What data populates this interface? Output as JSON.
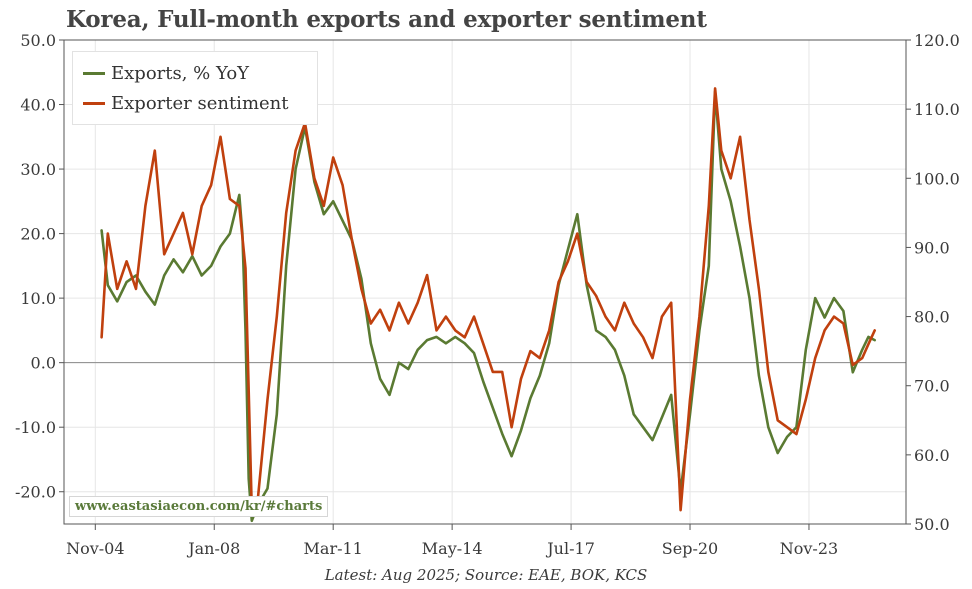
{
  "title": "Korea, Full-month exports and exporter sentiment",
  "source_note": "Latest: Aug 2025; Source: EAE, BOK, KCS",
  "watermark": "www.eastasiaecon.com/kr/#charts",
  "colors": {
    "exports": "#5a7a32",
    "sentiment": "#c0400e",
    "zero_line": "#8a8a8a",
    "grid": "#e6e6e6",
    "axis": "#555555"
  },
  "chart_data": {
    "type": "line",
    "title": "Korea, Full-month exports and exporter sentiment",
    "x_tick_labels": [
      "Nov-04",
      "Jan-08",
      "Mar-11",
      "May-14",
      "Jul-17",
      "Sep-20",
      "Nov-23"
    ],
    "x_tick_dates": [
      "2004-11",
      "2008-01",
      "2011-03",
      "2014-05",
      "2017-07",
      "2020-09",
      "2023-11"
    ],
    "x_range": [
      "2004-01",
      "2026-06"
    ],
    "left_axis": {
      "ylim": [
        -25,
        50
      ],
      "ticks": [
        -20.0,
        -10.0,
        0.0,
        10.0,
        20.0,
        30.0,
        40.0,
        50.0
      ],
      "tick_labels": [
        "-20.0",
        "-10.0",
        "0.0",
        "10.0",
        "20.0",
        "30.0",
        "40.0",
        "50.0"
      ]
    },
    "right_axis": {
      "ylim": [
        50,
        120
      ],
      "ticks": [
        50,
        60,
        70,
        80,
        90,
        100,
        110,
        120
      ],
      "tick_labels": [
        "50.0",
        "60.0",
        "70.0",
        "80.0",
        "90.0",
        "100.0",
        "110.0",
        "120.0"
      ]
    },
    "grid": true,
    "legend_position": "top-left",
    "series": [
      {
        "name": "Exports, % YoY",
        "axis": "left",
        "color": "#5a7a32",
        "points": [
          [
            "2005-01",
            20.5
          ],
          [
            "2005-03",
            12.0
          ],
          [
            "2005-06",
            9.5
          ],
          [
            "2005-09",
            12.5
          ],
          [
            "2005-12",
            13.5
          ],
          [
            "2006-03",
            11.0
          ],
          [
            "2006-06",
            9.0
          ],
          [
            "2006-09",
            13.5
          ],
          [
            "2006-12",
            16.0
          ],
          [
            "2007-03",
            14.0
          ],
          [
            "2007-06",
            16.5
          ],
          [
            "2007-09",
            13.5
          ],
          [
            "2007-12",
            15.0
          ],
          [
            "2008-03",
            18.0
          ],
          [
            "2008-06",
            20.0
          ],
          [
            "2008-09",
            26.0
          ],
          [
            "2008-10",
            20.0
          ],
          [
            "2008-11",
            5.0
          ],
          [
            "2008-12",
            -18.0
          ],
          [
            "2009-01",
            -24.5
          ],
          [
            "2009-03",
            -22.0
          ],
          [
            "2009-06",
            -19.5
          ],
          [
            "2009-09",
            -8.0
          ],
          [
            "2009-12",
            15.0
          ],
          [
            "2010-03",
            30.0
          ],
          [
            "2010-06",
            36.5
          ],
          [
            "2010-09",
            28.0
          ],
          [
            "2010-12",
            23.0
          ],
          [
            "2011-03",
            25.0
          ],
          [
            "2011-06",
            22.0
          ],
          [
            "2011-09",
            19.0
          ],
          [
            "2011-12",
            13.0
          ],
          [
            "2012-03",
            3.0
          ],
          [
            "2012-06",
            -2.5
          ],
          [
            "2012-09",
            -5.0
          ],
          [
            "2012-12",
            0.0
          ],
          [
            "2013-03",
            -1.0
          ],
          [
            "2013-06",
            2.0
          ],
          [
            "2013-09",
            3.5
          ],
          [
            "2013-12",
            4.0
          ],
          [
            "2014-03",
            3.0
          ],
          [
            "2014-06",
            4.0
          ],
          [
            "2014-09",
            3.0
          ],
          [
            "2014-12",
            1.5
          ],
          [
            "2015-03",
            -3.0
          ],
          [
            "2015-06",
            -7.0
          ],
          [
            "2015-09",
            -11.0
          ],
          [
            "2015-12",
            -14.5
          ],
          [
            "2016-03",
            -10.5
          ],
          [
            "2016-06",
            -5.5
          ],
          [
            "2016-09",
            -2.0
          ],
          [
            "2016-12",
            3.0
          ],
          [
            "2017-03",
            12.0
          ],
          [
            "2017-06",
            17.5
          ],
          [
            "2017-09",
            23.0
          ],
          [
            "2017-12",
            12.0
          ],
          [
            "2018-03",
            5.0
          ],
          [
            "2018-06",
            4.0
          ],
          [
            "2018-09",
            2.0
          ],
          [
            "2018-12",
            -2.0
          ],
          [
            "2019-03",
            -8.0
          ],
          [
            "2019-06",
            -10.0
          ],
          [
            "2019-09",
            -12.0
          ],
          [
            "2019-12",
            -8.5
          ],
          [
            "2020-03",
            -5.0
          ],
          [
            "2020-06",
            -20.0
          ],
          [
            "2020-09",
            -8.0
          ],
          [
            "2020-12",
            5.0
          ],
          [
            "2021-03",
            15.0
          ],
          [
            "2021-05",
            42.0
          ],
          [
            "2021-07",
            30.0
          ],
          [
            "2021-10",
            25.0
          ],
          [
            "2022-01",
            18.0
          ],
          [
            "2022-04",
            10.0
          ],
          [
            "2022-07",
            -2.0
          ],
          [
            "2022-10",
            -10.0
          ],
          [
            "2023-01",
            -14.0
          ],
          [
            "2023-04",
            -11.5
          ],
          [
            "2023-07",
            -10.0
          ],
          [
            "2023-10",
            2.0
          ],
          [
            "2024-01",
            10.0
          ],
          [
            "2024-04",
            7.0
          ],
          [
            "2024-07",
            10.0
          ],
          [
            "2024-10",
            8.0
          ],
          [
            "2025-01",
            -1.5
          ],
          [
            "2025-04",
            2.0
          ],
          [
            "2025-06",
            4.0
          ],
          [
            "2025-08",
            3.5
          ]
        ]
      },
      {
        "name": "Exporter sentiment",
        "axis": "right",
        "color": "#c0400e",
        "points": [
          [
            "2005-01",
            77.0
          ],
          [
            "2005-03",
            92.0
          ],
          [
            "2005-06",
            84.0
          ],
          [
            "2005-09",
            88.0
          ],
          [
            "2005-12",
            84.0
          ],
          [
            "2006-03",
            96.0
          ],
          [
            "2006-06",
            104.0
          ],
          [
            "2006-09",
            89.0
          ],
          [
            "2006-12",
            92.0
          ],
          [
            "2007-03",
            95.0
          ],
          [
            "2007-06",
            89.0
          ],
          [
            "2007-09",
            96.0
          ],
          [
            "2007-12",
            99.0
          ],
          [
            "2008-03",
            106.0
          ],
          [
            "2008-06",
            97.0
          ],
          [
            "2008-09",
            96.0
          ],
          [
            "2008-11",
            87.0
          ],
          [
            "2009-01",
            52.0
          ],
          [
            "2009-03",
            54.0
          ],
          [
            "2009-06",
            68.0
          ],
          [
            "2009-09",
            80.0
          ],
          [
            "2009-12",
            95.0
          ],
          [
            "2010-03",
            104.0
          ],
          [
            "2010-06",
            108.0
          ],
          [
            "2010-09",
            100.0
          ],
          [
            "2010-12",
            96.0
          ],
          [
            "2011-03",
            103.0
          ],
          [
            "2011-06",
            99.0
          ],
          [
            "2011-09",
            91.0
          ],
          [
            "2011-12",
            84.0
          ],
          [
            "2012-03",
            79.0
          ],
          [
            "2012-06",
            81.0
          ],
          [
            "2012-09",
            78.0
          ],
          [
            "2012-12",
            82.0
          ],
          [
            "2013-03",
            79.0
          ],
          [
            "2013-06",
            82.0
          ],
          [
            "2013-09",
            86.0
          ],
          [
            "2013-12",
            78.0
          ],
          [
            "2014-03",
            80.0
          ],
          [
            "2014-06",
            78.0
          ],
          [
            "2014-09",
            77.0
          ],
          [
            "2014-12",
            80.0
          ],
          [
            "2015-03",
            76.0
          ],
          [
            "2015-06",
            72.0
          ],
          [
            "2015-09",
            72.0
          ],
          [
            "2015-12",
            64.0
          ],
          [
            "2016-03",
            71.0
          ],
          [
            "2016-06",
            75.0
          ],
          [
            "2016-09",
            74.0
          ],
          [
            "2016-12",
            78.0
          ],
          [
            "2017-03",
            85.0
          ],
          [
            "2017-06",
            88.0
          ],
          [
            "2017-09",
            92.0
          ],
          [
            "2017-12",
            85.0
          ],
          [
            "2018-03",
            83.0
          ],
          [
            "2018-06",
            80.0
          ],
          [
            "2018-09",
            78.0
          ],
          [
            "2018-12",
            82.0
          ],
          [
            "2019-03",
            79.0
          ],
          [
            "2019-06",
            77.0
          ],
          [
            "2019-09",
            74.0
          ],
          [
            "2019-12",
            80.0
          ],
          [
            "2020-03",
            82.0
          ],
          [
            "2020-06",
            52.0
          ],
          [
            "2020-09",
            68.0
          ],
          [
            "2020-12",
            80.0
          ],
          [
            "2021-03",
            96.0
          ],
          [
            "2021-05",
            113.0
          ],
          [
            "2021-07",
            104.0
          ],
          [
            "2021-10",
            100.0
          ],
          [
            "2022-01",
            106.0
          ],
          [
            "2022-04",
            94.0
          ],
          [
            "2022-07",
            84.0
          ],
          [
            "2022-10",
            72.0
          ],
          [
            "2023-01",
            65.0
          ],
          [
            "2023-04",
            64.0
          ],
          [
            "2023-07",
            63.0
          ],
          [
            "2023-10",
            68.0
          ],
          [
            "2024-01",
            74.0
          ],
          [
            "2024-04",
            78.0
          ],
          [
            "2024-07",
            80.0
          ],
          [
            "2024-10",
            79.0
          ],
          [
            "2025-01",
            73.0
          ],
          [
            "2025-04",
            74.0
          ],
          [
            "2025-06",
            76.0
          ],
          [
            "2025-08",
            78.0
          ]
        ]
      }
    ]
  }
}
